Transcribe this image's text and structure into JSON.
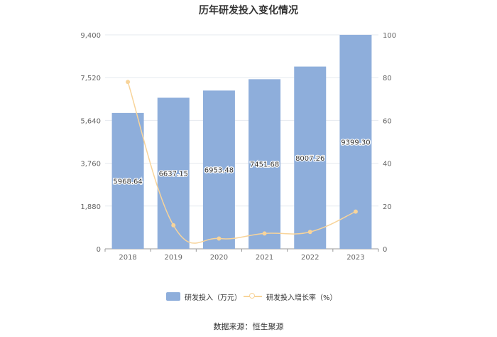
{
  "chart_data": {
    "type": "bar",
    "title": "历年研发投入变化情况",
    "categories": [
      "2018",
      "2019",
      "2020",
      "2021",
      "2022",
      "2023"
    ],
    "series": [
      {
        "name": "研发投入（万元）",
        "type": "bar",
        "axis": "left",
        "color": "#8eaedb",
        "values": [
          5968.64,
          6637.15,
          6953.48,
          7451.68,
          8007.26,
          9399.3
        ],
        "labels": [
          "5968.64",
          "6637.15",
          "6953.48",
          "7451.68",
          "8007.26",
          "9399.30"
        ]
      },
      {
        "name": "研发投入增长率（%）",
        "type": "line",
        "axis": "right",
        "color": "#f8d49a",
        "values": [
          78,
          11,
          4.8,
          7.2,
          7.9,
          17.4
        ]
      }
    ],
    "y_left": {
      "ticks": [
        "0",
        "1,880",
        "3,760",
        "5,640",
        "7,520",
        "9,400"
      ],
      "min": 0,
      "max": 9400
    },
    "y_right": {
      "ticks": [
        "0",
        "20",
        "40",
        "60",
        "80",
        "100"
      ],
      "min": 0,
      "max": 100
    },
    "grid": true,
    "legend_position": "bottom"
  },
  "source": "数据来源：恒生聚源"
}
